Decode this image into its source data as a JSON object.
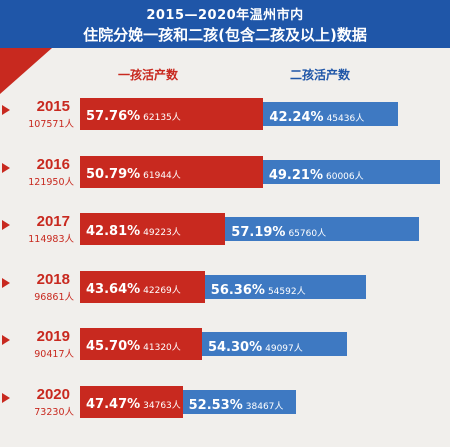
{
  "title": {
    "line1": "2015—2020年温州市内",
    "line2": "住院分娩一孩和二孩(包含二孩及以上)数据"
  },
  "legend": {
    "one_child": "一孩活产数",
    "two_child": "二孩活产数"
  },
  "colors": {
    "one_child": "#c8291f",
    "two_child": "#3e79c2",
    "header": "#1f56a8"
  },
  "chart_data": {
    "type": "bar",
    "orientation": "horizontal",
    "stacked": true,
    "percent_stacked": true,
    "categories": [
      "2015",
      "2016",
      "2017",
      "2018",
      "2019",
      "2020"
    ],
    "totals": [
      "107571人",
      "121950人",
      "114983人",
      "96861人",
      "90417人",
      "73230人"
    ],
    "series": [
      {
        "name": "一孩活产数",
        "values": [
          57.76,
          50.79,
          42.81,
          43.64,
          45.7,
          47.47
        ],
        "pct_labels": [
          "57.76%",
          "50.79%",
          "42.81%",
          "43.64%",
          "45.70%",
          "47.47%"
        ],
        "count_labels": [
          "62135人",
          "61944人",
          "49223人",
          "42269人",
          "41320人",
          "34763人"
        ]
      },
      {
        "name": "二孩活产数",
        "values": [
          42.24,
          49.21,
          57.19,
          56.36,
          54.3,
          52.53
        ],
        "pct_labels": [
          "42.24%",
          "49.21%",
          "57.19%",
          "56.36%",
          "54.30%",
          "52.53%"
        ],
        "count_labels": [
          "45436人",
          "60006人",
          "65760人",
          "54592人",
          "49097人",
          "38467人"
        ]
      }
    ],
    "bar_scale": [
      107571,
      121950,
      114983,
      96861,
      90417,
      73230
    ]
  }
}
